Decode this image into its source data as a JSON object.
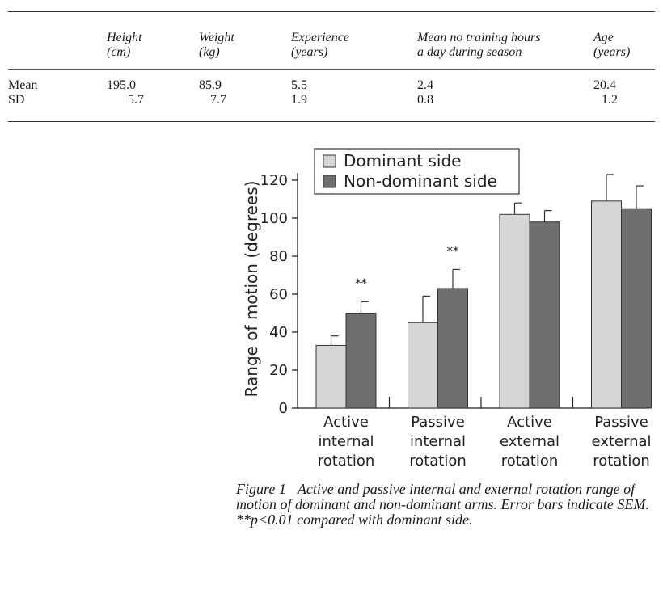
{
  "table": {
    "headers": [
      {
        "line1": "Height",
        "line2": "(cm)"
      },
      {
        "line1": "Weight",
        "line2": "(kg)"
      },
      {
        "line1": "Experience",
        "line2": "(years)"
      },
      {
        "line1": "Mean no training hours",
        "line2": "a day during season"
      },
      {
        "line1": "Age",
        "line2": "(years)"
      }
    ],
    "rows": [
      {
        "label": "Mean",
        "values": [
          "195.0",
          "85.9",
          "5.5",
          "2.4",
          "20.4"
        ]
      },
      {
        "label": "SD",
        "values": [
          "5.7",
          "7.7",
          "1.9",
          "0.8",
          "1.2"
        ]
      }
    ]
  },
  "chart_data": {
    "type": "bar",
    "ylabel": "Range of motion (degrees)",
    "xlabel": "",
    "ylim": [
      0,
      120
    ],
    "yticks": [
      "0",
      "20",
      "40",
      "60",
      "80",
      "100",
      "120"
    ],
    "categories": [
      [
        "Active",
        "internal",
        "rotation"
      ],
      [
        "Passive",
        "internal",
        "rotation"
      ],
      [
        "Active",
        "external",
        "rotation"
      ],
      [
        "Passive",
        "external",
        "rotation"
      ]
    ],
    "series": [
      {
        "name": "Dominant side",
        "color": "#d6d6d6",
        "values": [
          33,
          45,
          102,
          109
        ],
        "errors": [
          5,
          14,
          6,
          14
        ]
      },
      {
        "name": "Non-dominant side",
        "color": "#6f6f6f",
        "values": [
          50,
          63,
          98,
          105
        ],
        "errors": [
          6,
          10,
          6,
          12
        ]
      }
    ],
    "annotations": [
      "**",
      "**",
      "",
      ""
    ],
    "legend": "top",
    "grid": false
  },
  "caption": {
    "label": "Figure 1",
    "text": "Active and passive internal and external rotation range of motion of dominant and non-dominant arms. Error bars indicate SEM. **p<0.01 compared with dominant side."
  }
}
